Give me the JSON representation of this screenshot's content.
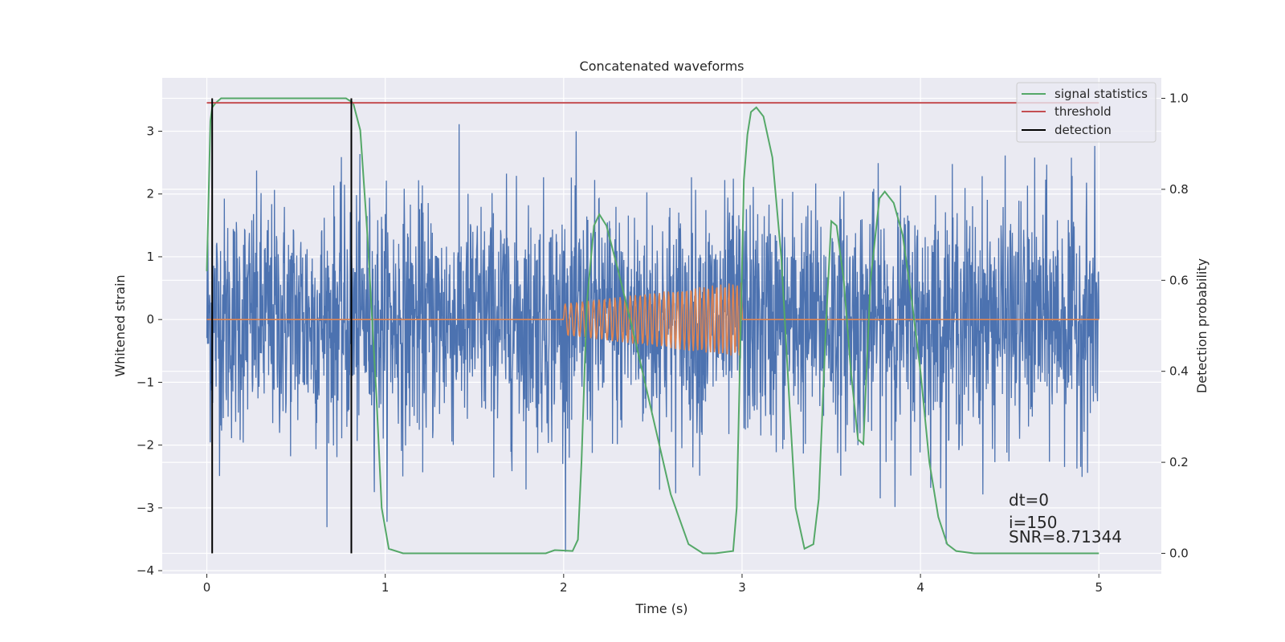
{
  "chart_data": {
    "type": "line",
    "title": "Concatenated waveforms",
    "xlabel": "Time (s)",
    "ylabel": "Whitened strain",
    "y2label": "Detection probability",
    "xlim": [
      -0.25,
      5.35
    ],
    "ylim": [
      -4.05,
      3.85
    ],
    "y2lim": [
      -0.045,
      1.045
    ],
    "xticks": [
      0,
      1,
      2,
      3,
      4,
      5
    ],
    "yticks": [
      -4,
      -3,
      -2,
      -1,
      0,
      1,
      2,
      3
    ],
    "y2ticks": [
      0.0,
      0.2,
      0.4,
      0.6,
      0.8,
      1.0
    ],
    "y2ticklabels": [
      "0.0",
      "0.2",
      "0.4",
      "0.6",
      "0.8",
      "1.0"
    ],
    "grid": true,
    "legend_position": "top-right",
    "colors": {
      "background": "#eaeaf2",
      "grid": "#ffffff",
      "strain": "#4c72b0",
      "injection": "#dd8452",
      "signal_statistics": "#55a868",
      "threshold": "#c44e52",
      "detection": "#000000"
    },
    "strain": {
      "x_range": [
        0,
        5
      ],
      "approx_amplitude_range": [
        -3.7,
        3.55
      ],
      "description_of_envelope": "noise, typically within about -2.5 to 2.5"
    },
    "injection": {
      "baseline": 0,
      "chirp_start": 2.0,
      "chirp_end": 3.0,
      "amplitude_start": 0.25,
      "amplitude_end": 0.6,
      "freq_start": 30,
      "freq_end": 45
    },
    "series": [
      {
        "name": "signal statistics",
        "axis": "right",
        "x": [
          0.0,
          0.02,
          0.03,
          0.05,
          0.08,
          0.15,
          0.78,
          0.82,
          0.86,
          0.9,
          0.95,
          0.98,
          1.02,
          1.1,
          1.5,
          1.9,
          1.95,
          2.05,
          2.08,
          2.1,
          2.13,
          2.17,
          2.2,
          2.24,
          2.3,
          2.4,
          2.5,
          2.6,
          2.7,
          2.78,
          2.85,
          2.95,
          2.97,
          2.99,
          3.01,
          3.03,
          3.05,
          3.08,
          3.12,
          3.17,
          3.22,
          3.27,
          3.3,
          3.35,
          3.4,
          3.43,
          3.47,
          3.5,
          3.53,
          3.57,
          3.61,
          3.65,
          3.68,
          3.72,
          3.77,
          3.8,
          3.85,
          3.9,
          3.95,
          4.0,
          4.05,
          4.1,
          4.15,
          4.2,
          4.3,
          4.5,
          5.0
        ],
        "y": [
          0.62,
          0.95,
          0.98,
          0.99,
          1.0,
          1.0,
          1.0,
          0.99,
          0.93,
          0.7,
          0.35,
          0.1,
          0.01,
          0.0,
          0.0,
          0.0,
          0.007,
          0.005,
          0.03,
          0.2,
          0.55,
          0.72,
          0.745,
          0.72,
          0.63,
          0.47,
          0.3,
          0.13,
          0.02,
          0.0,
          0.0,
          0.005,
          0.1,
          0.45,
          0.82,
          0.92,
          0.97,
          0.98,
          0.96,
          0.87,
          0.65,
          0.3,
          0.1,
          0.01,
          0.02,
          0.12,
          0.5,
          0.73,
          0.72,
          0.6,
          0.4,
          0.25,
          0.24,
          0.6,
          0.78,
          0.795,
          0.77,
          0.7,
          0.56,
          0.4,
          0.2,
          0.08,
          0.02,
          0.005,
          0.0,
          0.0,
          0.0
        ]
      },
      {
        "name": "threshold",
        "axis": "right",
        "x": [
          0.0,
          5.0
        ],
        "y": [
          0.99,
          0.99
        ]
      },
      {
        "name": "detection",
        "axis": "right",
        "x": [
          0.03,
          0.81
        ],
        "y_from": 0.0,
        "y_to": 1.0
      }
    ],
    "annotations": [
      {
        "text": "dt=0"
      },
      {
        "text": "i=150"
      },
      {
        "text": "SNR=8.71344"
      }
    ]
  }
}
